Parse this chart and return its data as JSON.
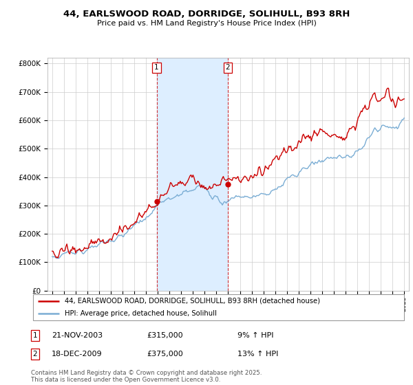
{
  "title": "44, EARLSWOOD ROAD, DORRIDGE, SOLIHULL, B93 8RH",
  "subtitle": "Price paid vs. HM Land Registry's House Price Index (HPI)",
  "yticks": [
    0,
    100000,
    200000,
    300000,
    400000,
    500000,
    600000,
    700000,
    800000
  ],
  "ytick_labels": [
    "£0",
    "£100K",
    "£200K",
    "£300K",
    "£400K",
    "£500K",
    "£600K",
    "£700K",
    "£800K"
  ],
  "ylim": [
    0,
    820000
  ],
  "legend_label_red": "44, EARLSWOOD ROAD, DORRIDGE, SOLIHULL, B93 8RH (detached house)",
  "legend_label_blue": "HPI: Average price, detached house, Solihull",
  "sale1_date": "21-NOV-2003",
  "sale1_price": 315000,
  "sale1_hpi": "9% ↑ HPI",
  "sale2_date": "18-DEC-2009",
  "sale2_price": 375000,
  "sale2_hpi": "13% ↑ HPI",
  "footer": "Contains HM Land Registry data © Crown copyright and database right 2025.\nThis data is licensed under the Open Government Licence v3.0.",
  "color_red": "#cc0000",
  "color_blue": "#7aadd4",
  "color_shaded": "#ddeeff",
  "sale1_x": 2003.9,
  "sale2_x": 2009.97
}
